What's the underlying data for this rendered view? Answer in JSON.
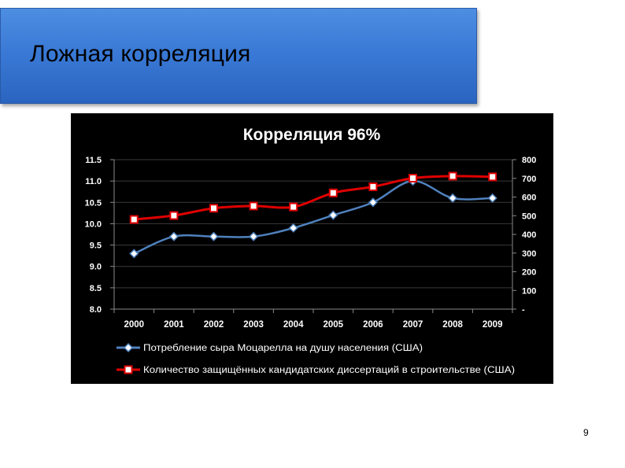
{
  "slide": {
    "title": "Ложная корреляция",
    "page_number": "9"
  },
  "chart_data": {
    "type": "line",
    "title": "Корреляция 96%",
    "x": [
      "2000",
      "2001",
      "2002",
      "2003",
      "2004",
      "2005",
      "2006",
      "2007",
      "2008",
      "2009"
    ],
    "left_axis": {
      "ylim": [
        8.0,
        11.5
      ],
      "ticks": [
        "8.0",
        "8.5",
        "9.0",
        "9.5",
        "10.0",
        "10.5",
        "11.0",
        "11.5"
      ]
    },
    "right_axis": {
      "ylim": [
        0,
        800
      ],
      "ticks": [
        "-",
        "100",
        "200",
        "300",
        "400",
        "500",
        "600",
        "700",
        "800"
      ]
    },
    "series": [
      {
        "name": "Потребление сыра Моцарелла на душу населения (США)",
        "axis": "left",
        "color": "#4f81bd",
        "marker": "diamond",
        "values": [
          9.3,
          9.7,
          9.7,
          9.7,
          9.9,
          10.2,
          10.5,
          11.0,
          10.6,
          10.6
        ]
      },
      {
        "name": "Количество защищённых кандидатских диссертаций в строительстве (США)",
        "axis": "right",
        "color": "#e00000",
        "marker": "square",
        "values": [
          480,
          501,
          540,
          552,
          547,
          622,
          655,
          701,
          712,
          708
        ]
      }
    ],
    "legend_position": "bottom",
    "grid": true,
    "background": "#000000"
  }
}
